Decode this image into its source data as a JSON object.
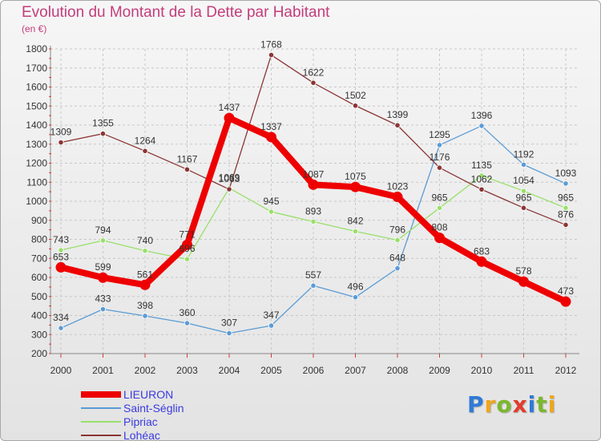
{
  "title": "Evolution du Montant de la Dette par Habitant",
  "subtitle": "(en €)",
  "logo": {
    "text": "Proxiti",
    "letters": [
      {
        "ch": "P",
        "color": "#2f7ad6"
      },
      {
        "ch": "r",
        "color": "#f0a61c"
      },
      {
        "ch": "o",
        "color": "#7ab82e"
      },
      {
        "ch": "x",
        "color": "#e23b2e"
      },
      {
        "ch": "i",
        "color": "#2f7ad6"
      },
      {
        "ch": "t",
        "color": "#7ab82e"
      },
      {
        "ch": "i",
        "color": "#f0a61c"
      }
    ]
  },
  "chart_data": {
    "type": "line",
    "title": "Evolution du Montant de la Dette par Habitant",
    "ylabel": "(en €)",
    "xlabel": "",
    "x": [
      "2000",
      "2001",
      "2002",
      "2003",
      "2004",
      "2005",
      "2006",
      "2007",
      "2008",
      "2009",
      "2010",
      "2011",
      "2012"
    ],
    "ylim": [
      200,
      1800
    ],
    "yticks": [
      200,
      300,
      400,
      500,
      600,
      700,
      800,
      900,
      1000,
      1100,
      1200,
      1300,
      1400,
      1500,
      1600,
      1700,
      1800
    ],
    "grid": "horizontal dashed",
    "legend_position": "bottom-left",
    "series": [
      {
        "name": "LIEURON",
        "color": "#ee0000",
        "values": [
          653,
          599,
          561,
          771,
          1437,
          1337,
          1087,
          1075,
          1023,
          808,
          683,
          578,
          473
        ],
        "labels": [
          "653",
          "599",
          "561",
          "771",
          "1437",
          "1337",
          "1087",
          "1075",
          "1023",
          "808",
          "683",
          "578",
          "473"
        ]
      },
      {
        "name": "Saint-Séglin",
        "color": "#5b9bd5",
        "values": [
          334,
          433,
          398,
          360,
          307,
          347,
          557,
          496,
          648,
          1295,
          1396,
          1192,
          1093
        ],
        "labels": [
          "334",
          "433",
          "398",
          "360",
          "307",
          "347",
          "557",
          "496",
          "648",
          "1295",
          "1396",
          "1192",
          "1093"
        ]
      },
      {
        "name": "Pipriac",
        "color": "#99e06a",
        "values": [
          743,
          794,
          740,
          696,
          1069,
          945,
          893,
          842,
          796,
          965,
          1135,
          1054,
          965
        ],
        "labels": [
          "743",
          "794",
          "740",
          "696",
          "1069",
          "945",
          "893",
          "842",
          "796",
          "965",
          "1135",
          "1054",
          "965"
        ]
      },
      {
        "name": "Lohéac",
        "color": "#8b3535",
        "values": [
          1309,
          1355,
          1264,
          1167,
          1063,
          1768,
          1622,
          1502,
          1399,
          1176,
          1062,
          965,
          876
        ],
        "labels": [
          "1309",
          "1355",
          "1264",
          "1167",
          "1063",
          "1768",
          "1622",
          "1502",
          "1399",
          "1176",
          "1062",
          "965",
          "876"
        ]
      }
    ]
  }
}
